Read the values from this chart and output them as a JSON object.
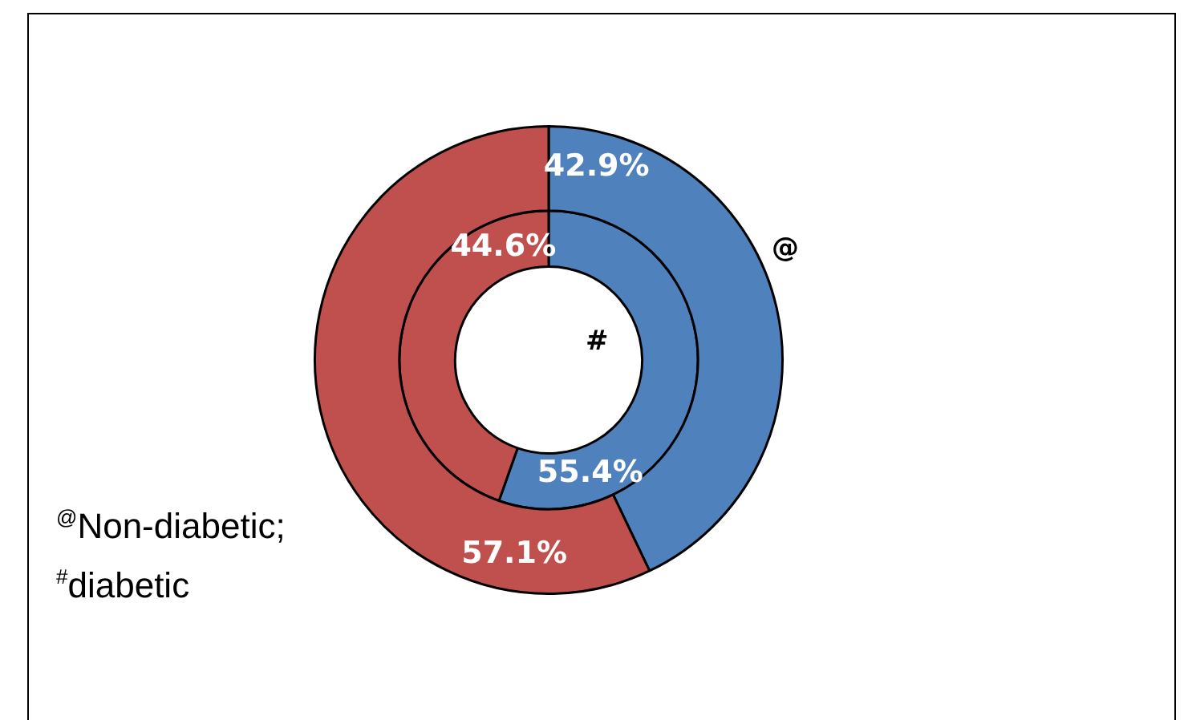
{
  "chart_data": {
    "type": "donut",
    "categories": [
      null,
      null
    ],
    "colors": [
      "#4f81bd",
      "#c0504d"
    ],
    "series": [
      {
        "name": "@",
        "values": [
          42.9,
          57.1
        ],
        "value_labels": [
          "42.9%",
          "57.1%"
        ]
      },
      {
        "name": "#",
        "values": [
          55.4,
          44.6
        ],
        "value_labels": [
          "55.4%",
          "44.6%"
        ]
      }
    ],
    "legend": false,
    "annotations": [
      "$^{@}$Non-diabetic; $^{#}$diabetic"
    ]
  }
}
